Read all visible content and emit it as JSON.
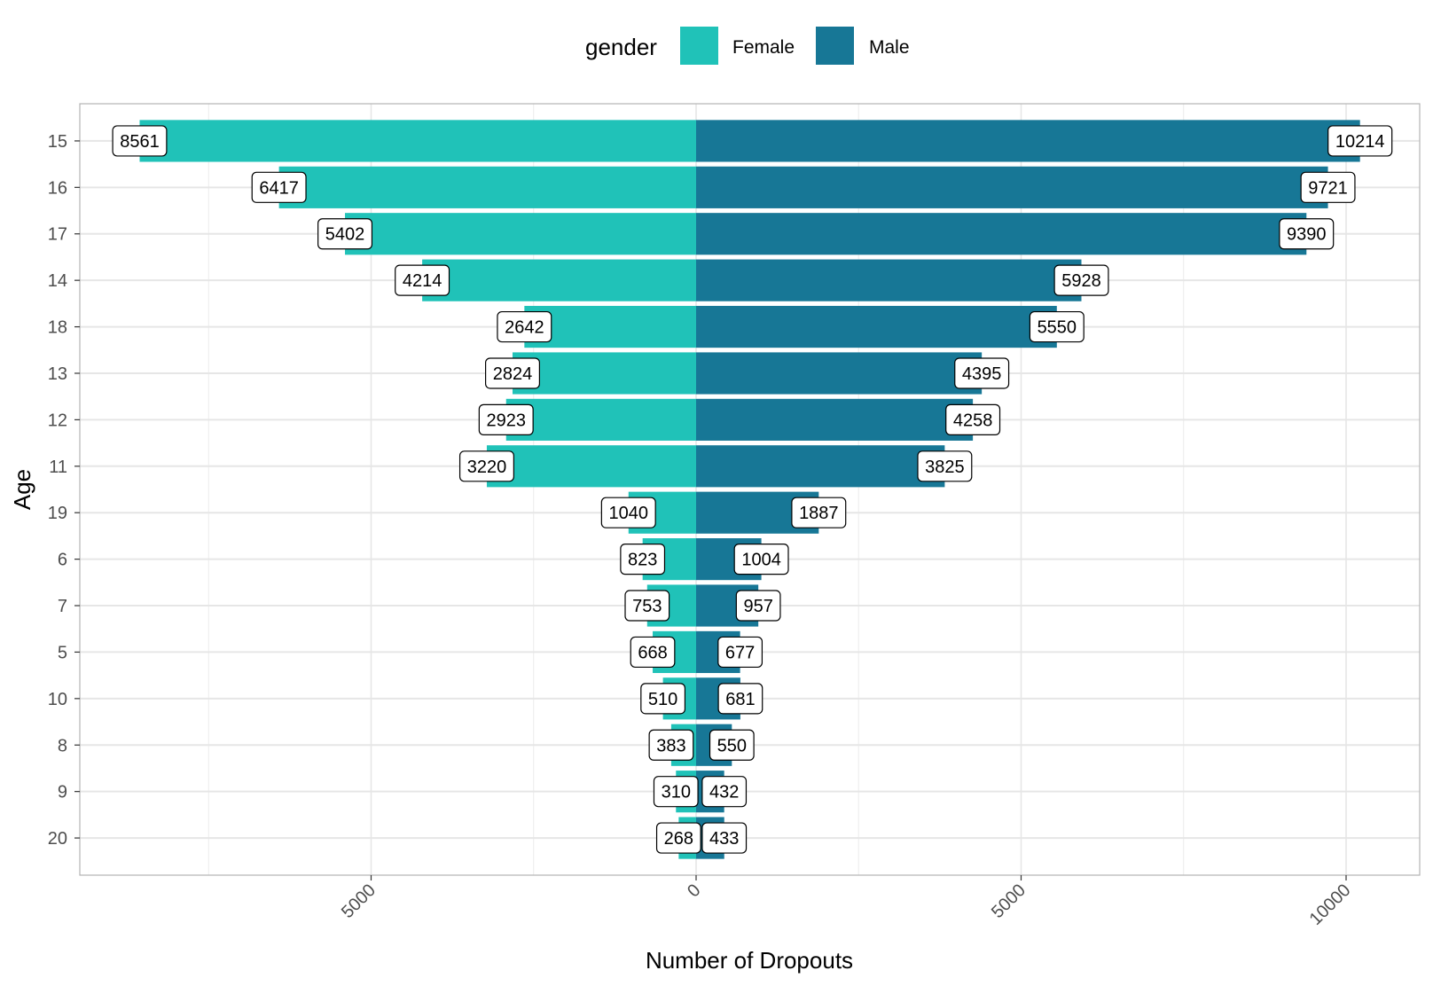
{
  "chart_data": {
    "type": "bar",
    "orientation": "horizontal",
    "layout": "diverging (population pyramid)",
    "xlabel": "Number of Dropouts",
    "ylabel": "Age",
    "xlim": [
      -9500,
      11000
    ],
    "x_ticks": [
      {
        "value": -5000,
        "label": "5000"
      },
      {
        "value": 0,
        "label": "0"
      },
      {
        "value": 5000,
        "label": "5000"
      },
      {
        "value": 10000,
        "label": "10000"
      }
    ],
    "grid": true,
    "legend": {
      "title": "gender",
      "position": "top",
      "entries": [
        {
          "label": "Female",
          "color": "#20c2b8"
        },
        {
          "label": "Male",
          "color": "#177796"
        }
      ]
    },
    "categories": [
      "15",
      "16",
      "17",
      "14",
      "18",
      "13",
      "12",
      "11",
      "19",
      "6",
      "7",
      "5",
      "10",
      "8",
      "9",
      "20"
    ],
    "series": [
      {
        "name": "Female",
        "color": "#20c2b8",
        "direction": "left",
        "values": [
          8561,
          6417,
          5402,
          4214,
          2642,
          2824,
          2923,
          3220,
          1040,
          823,
          753,
          668,
          510,
          383,
          310,
          268
        ],
        "labels": [
          "8561",
          "6417",
          "5402",
          "4214",
          "2642",
          "2824",
          "2923",
          "3220",
          "1040",
          "823",
          "753",
          "668",
          "510",
          "383",
          "310",
          "268"
        ]
      },
      {
        "name": "Male",
        "color": "#177796",
        "direction": "right",
        "values": [
          10214,
          9721,
          9390,
          5928,
          5550,
          4395,
          4258,
          3825,
          1887,
          1004,
          957,
          677,
          681,
          550,
          432,
          433
        ],
        "labels": [
          "10214",
          "9721",
          "9390",
          "5928",
          "5550",
          "4395",
          "4258",
          "3825",
          "1887",
          "1004",
          "957",
          "677",
          "681",
          "550",
          "432",
          "433"
        ]
      }
    ]
  }
}
